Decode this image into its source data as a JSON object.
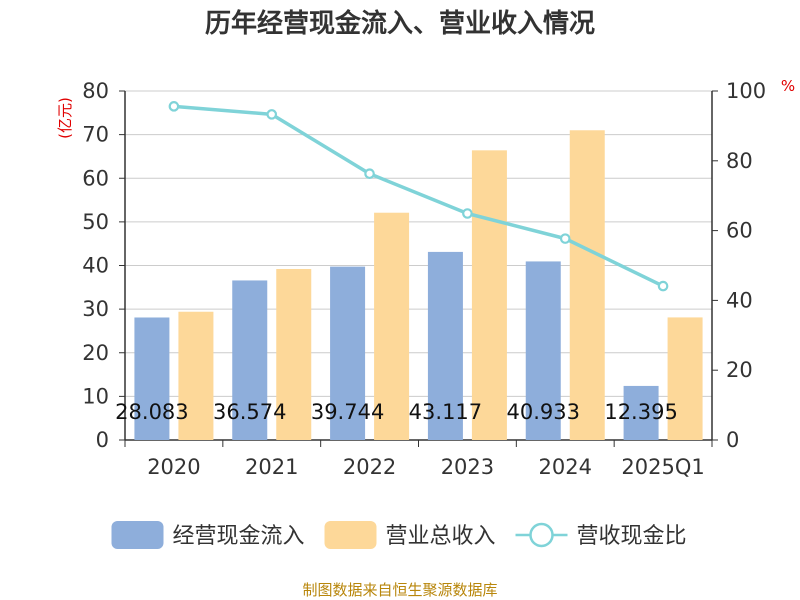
{
  "chart_data": {
    "type": "bar",
    "title": "历年经营现金流入、营业收入情况",
    "categories": [
      "2020",
      "2021",
      "2022",
      "2023",
      "2024",
      "2025Q1"
    ],
    "y_left": {
      "unit": "(亿元)",
      "ylim": [
        0,
        80
      ],
      "ticks": [
        "0",
        "10",
        "20",
        "30",
        "40",
        "50",
        "60",
        "70",
        "80"
      ]
    },
    "y_right": {
      "unit": "%",
      "ylim": [
        0,
        100
      ],
      "ticks": [
        "0",
        "20",
        "40",
        "60",
        "80",
        "100"
      ]
    },
    "series": [
      {
        "name": "经营现金流入",
        "kind": "bar",
        "axis": "left",
        "color": "#8eaedb",
        "values": [
          28.083,
          36.574,
          39.744,
          43.117,
          40.933,
          12.395
        ],
        "labels": [
          "28.083",
          "36.574",
          "39.744",
          "43.117",
          "40.933",
          "12.395"
        ]
      },
      {
        "name": "营业总收入",
        "kind": "bar",
        "axis": "left",
        "color": "#fdd899",
        "values": [
          29.4,
          39.2,
          52.1,
          66.4,
          71.0,
          28.1
        ]
      },
      {
        "name": "营收现金比",
        "kind": "line",
        "axis": "right",
        "color": "#7fd3d8",
        "values": [
          95.6,
          93.3,
          76.3,
          64.9,
          57.7,
          44.1
        ]
      }
    ],
    "grid": true,
    "legend_position": "bottom"
  },
  "source_text": "制图数据来自恒生聚源数据库"
}
